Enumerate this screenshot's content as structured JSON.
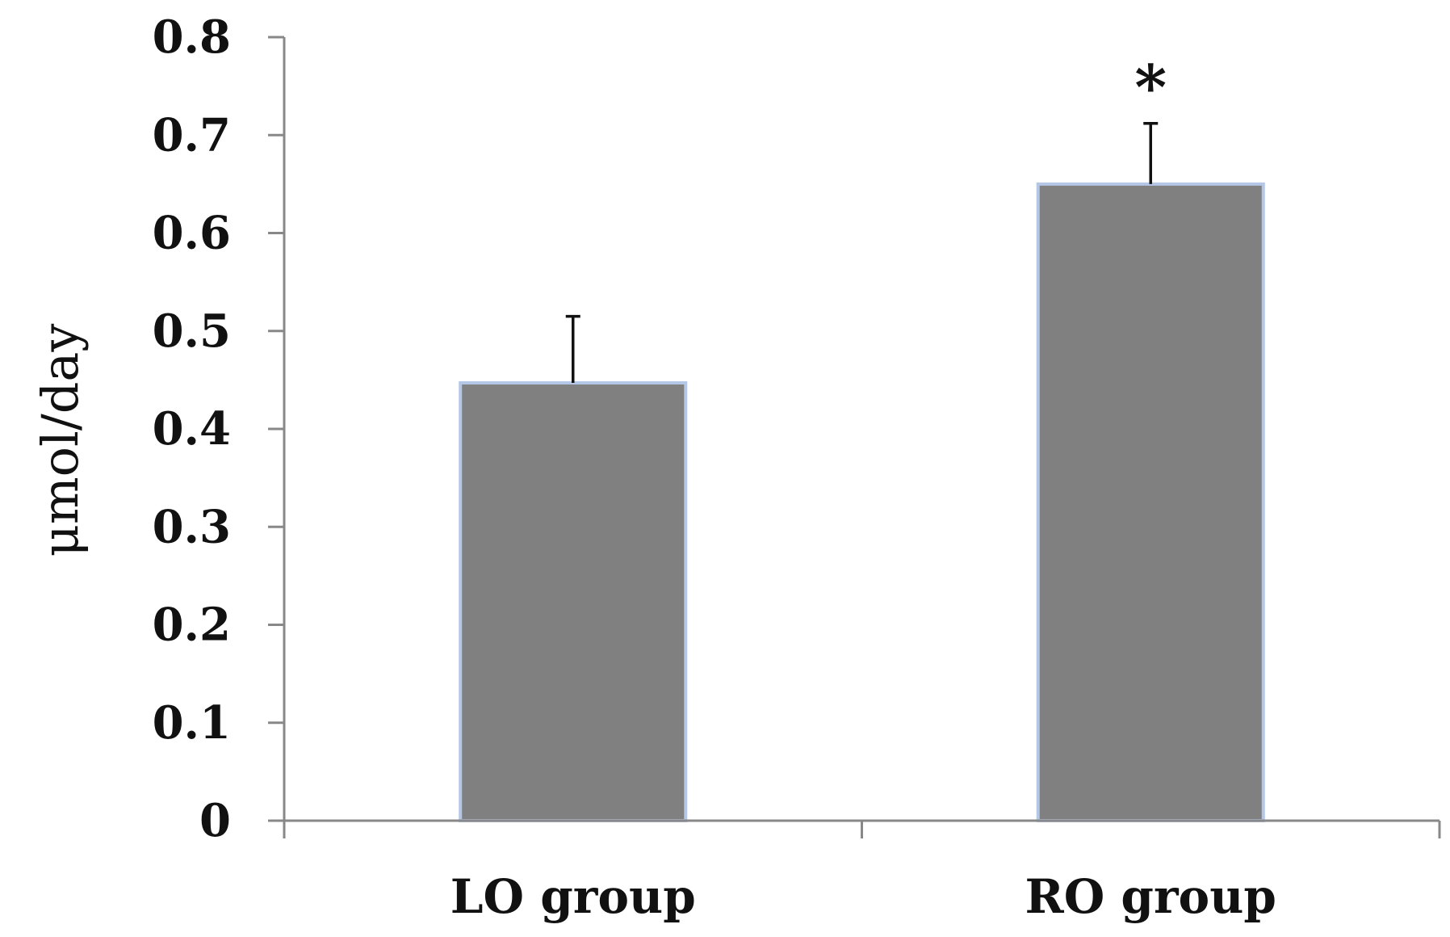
{
  "chart_data": {
    "type": "bar",
    "title": "",
    "xlabel": "",
    "ylabel": "μmol/day",
    "categories": [
      "LO group",
      "RO group"
    ],
    "values": [
      0.447,
      0.65
    ],
    "errors": [
      0.068,
      0.062
    ],
    "annotations": [
      "",
      "*"
    ],
    "ylim": [
      0,
      0.8
    ],
    "yticks": [
      "0",
      "0.1",
      "0.2",
      "0.3",
      "0.4",
      "0.5",
      "0.6",
      "0.7",
      "0.8"
    ],
    "grid": false,
    "legend": "none",
    "colors": {
      "bar_fill": "#808080",
      "bar_edge": "#b4c7e7",
      "axis": "#888888",
      "error_bar": "#111111"
    }
  }
}
